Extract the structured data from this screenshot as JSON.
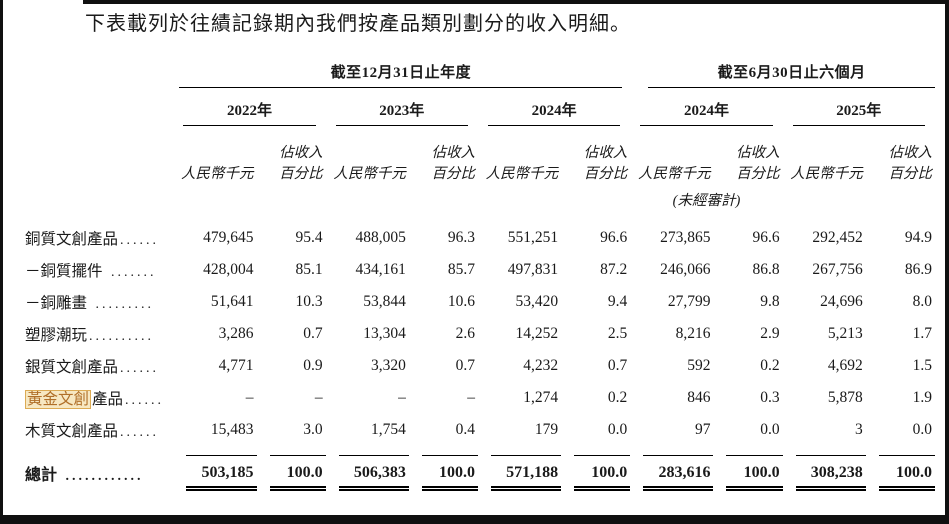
{
  "page": {
    "intro": "下表載列於往績記錄期內我們按產品類別劃分的收入明細。"
  },
  "table": {
    "groups": [
      {
        "title": "截至12月31日止年度",
        "years": [
          "2022年",
          "2023年",
          "2024年"
        ]
      },
      {
        "title": "截至6月30日止六個月",
        "years": [
          "2024年",
          "2025年"
        ]
      }
    ],
    "col_headers": {
      "money": "人民幣千元",
      "pct_line1": "佔收入",
      "pct_line2": "百分比"
    },
    "unaudited_note": "(未經審計)",
    "rows": [
      {
        "highlight": "",
        "label": "銅質文創產品",
        "dots": "......",
        "values": [
          "479,645",
          "95.4",
          "488,005",
          "96.3",
          "551,251",
          "96.6",
          "273,865",
          "96.6",
          "292,452",
          "94.9"
        ]
      },
      {
        "highlight": "",
        "label": "－銅質擺件",
        "dots": " .......",
        "values": [
          "428,004",
          "85.1",
          "434,161",
          "85.7",
          "497,831",
          "87.2",
          "246,066",
          "86.8",
          "267,756",
          "86.9"
        ]
      },
      {
        "highlight": "",
        "label": "－銅雕畫",
        "dots": " .........",
        "values": [
          "51,641",
          "10.3",
          "53,844",
          "10.6",
          "53,420",
          "9.4",
          "27,799",
          "9.8",
          "24,696",
          "8.0"
        ]
      },
      {
        "highlight": "",
        "label": "塑膠潮玩",
        "dots": "..........",
        "values": [
          "3,286",
          "0.7",
          "13,304",
          "2.6",
          "14,252",
          "2.5",
          "8,216",
          "2.9",
          "5,213",
          "1.7"
        ]
      },
      {
        "highlight": "",
        "label": "銀質文創產品",
        "dots": "......",
        "values": [
          "4,771",
          "0.9",
          "3,320",
          "0.7",
          "4,232",
          "0.7",
          "592",
          "0.2",
          "4,692",
          "1.5"
        ]
      },
      {
        "highlight": "黃金文創",
        "label": "產品",
        "dots": "......",
        "values": [
          "–",
          "–",
          "–",
          "–",
          "1,274",
          "0.2",
          "846",
          "0.3",
          "5,878",
          "1.9"
        ]
      },
      {
        "highlight": "",
        "label": "木質文創產品",
        "dots": "......",
        "values": [
          "15,483",
          "3.0",
          "1,754",
          "0.4",
          "179",
          "0.0",
          "97",
          "0.0",
          "3",
          "0.0"
        ]
      }
    ],
    "total": {
      "label": "總計",
      "dots": " ............",
      "values": [
        "503,185",
        "100.0",
        "506,383",
        "100.0",
        "571,188",
        "100.0",
        "283,616",
        "100.0",
        "308,238",
        "100.0"
      ]
    }
  },
  "colors": {
    "highlight_bg": "#f7e8c2",
    "highlight_border": "#dcab55",
    "highlight_text": "#b06f28",
    "frame": "#101010"
  }
}
